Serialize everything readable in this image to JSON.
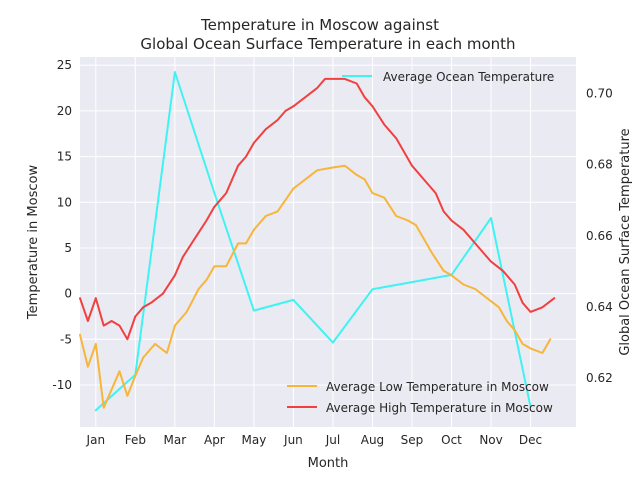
{
  "chart_data": {
    "type": "line",
    "title": "Temperature in Moscow against",
    "subtitle": "Global Ocean Surface Temperature in each month",
    "xlabel": "Month",
    "ylabel_left": "Temperature in Moscow",
    "ylabel_right": "Global Ocean Surface Temperature",
    "x_ticks": [
      "Jan",
      "Feb",
      "Mar",
      "Apr",
      "May",
      "Jun",
      "Jul",
      "Aug",
      "Sep",
      "Oct",
      "Nov",
      "Dec"
    ],
    "x_range": [
      -0.4,
      12.15
    ],
    "y_left_range": [
      -14.6,
      25.9
    ],
    "y_left_ticks": [
      -10,
      -5,
      0,
      5,
      10,
      15,
      20,
      25
    ],
    "y_right_range": [
      0.6063,
      0.7102
    ],
    "y_right_ticks": [
      0.62,
      0.64,
      0.66,
      0.68,
      0.7
    ],
    "grid": true,
    "series": [
      {
        "name": "Average Ocean Temperature",
        "axis": "right",
        "color": "#40f2f2",
        "x": [
          0,
          1,
          2,
          3,
          4,
          5,
          6,
          7,
          8,
          9,
          10,
          11
        ],
        "y": [
          0.611,
          0.621,
          0.706,
          0.672,
          0.639,
          0.642,
          0.63,
          0.645,
          0.647,
          0.649,
          0.665,
          0.612
        ]
      },
      {
        "name": "Average Low Temperature in Moscow",
        "axis": "left",
        "color": "#f7b53a",
        "x": [
          -0.4,
          -0.2,
          0.0,
          0.2,
          0.4,
          0.6,
          0.8,
          1.0,
          1.2,
          1.5,
          1.8,
          2.0,
          2.3,
          2.6,
          2.8,
          3.0,
          3.3,
          3.6,
          3.8,
          4.0,
          4.3,
          4.6,
          5.0,
          5.3,
          5.6,
          6.0,
          6.3,
          6.6,
          6.8,
          7.0,
          7.3,
          7.6,
          7.9,
          8.1,
          8.3,
          8.5,
          8.8,
          9.0,
          9.3,
          9.6,
          9.9,
          10.2,
          10.4,
          10.6,
          10.8,
          11.0,
          11.3,
          11.5
        ],
        "y": [
          -4.5,
          -8.0,
          -5.5,
          -12.5,
          -10.5,
          -8.5,
          -11.2,
          -9.0,
          -7.0,
          -5.5,
          -6.5,
          -3.5,
          -2.0,
          0.5,
          1.5,
          3.0,
          3.0,
          5.5,
          5.5,
          7.0,
          8.5,
          9.0,
          11.5,
          12.5,
          13.5,
          13.8,
          14.0,
          13.0,
          12.5,
          11.0,
          10.5,
          8.5,
          8.0,
          7.5,
          6.0,
          4.5,
          2.5,
          2.0,
          1.0,
          0.5,
          -0.5,
          -1.5,
          -3.0,
          -4.0,
          -5.5,
          -6.0,
          -6.5,
          -5.0
        ]
      },
      {
        "name": "Average High Temperature in Moscow",
        "axis": "left",
        "color": "#f04040",
        "x": [
          -0.4,
          -0.2,
          0.0,
          0.2,
          0.4,
          0.6,
          0.8,
          1.0,
          1.2,
          1.4,
          1.7,
          2.0,
          2.2,
          2.5,
          2.8,
          3.0,
          3.3,
          3.6,
          3.8,
          4.0,
          4.3,
          4.6,
          4.8,
          5.0,
          5.3,
          5.6,
          5.8,
          6.0,
          6.3,
          6.6,
          6.8,
          7.0,
          7.3,
          7.6,
          7.8,
          8.0,
          8.3,
          8.6,
          8.8,
          9.0,
          9.3,
          9.6,
          9.8,
          10.0,
          10.3,
          10.6,
          10.8,
          11.0,
          11.3,
          11.6
        ],
        "y": [
          -0.5,
          -3.0,
          -0.5,
          -3.5,
          -3.0,
          -3.5,
          -5.0,
          -2.5,
          -1.5,
          -1.0,
          0.0,
          2.0,
          4.0,
          6.0,
          8.0,
          9.5,
          11.0,
          14.0,
          15.0,
          16.5,
          18.0,
          19.0,
          20.0,
          20.5,
          21.5,
          22.5,
          23.5,
          23.5,
          23.5,
          23.0,
          21.5,
          20.5,
          18.5,
          17.0,
          15.5,
          14.0,
          12.5,
          11.0,
          9.0,
          8.0,
          7.0,
          5.5,
          4.5,
          3.5,
          2.5,
          1.0,
          -1.0,
          -2.0,
          -1.5,
          -0.5
        ]
      }
    ]
  }
}
